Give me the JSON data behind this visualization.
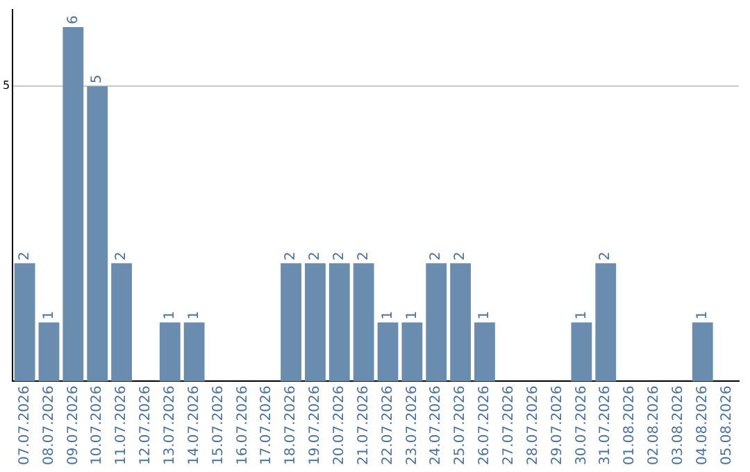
{
  "chart_data": {
    "type": "bar",
    "categories": [
      "07.07.2026",
      "08.07.2026",
      "09.07.2026",
      "10.07.2026",
      "11.07.2026",
      "12.07.2026",
      "13.07.2026",
      "14.07.2026",
      "15.07.2026",
      "16.07.2026",
      "17.07.2026",
      "18.07.2026",
      "19.07.2026",
      "20.07.2026",
      "21.07.2026",
      "22.07.2026",
      "23.07.2026",
      "24.07.2026",
      "25.07.2026",
      "26.07.2026",
      "27.07.2026",
      "28.07.2026",
      "29.07.2026",
      "30.07.2026",
      "31.07.2026",
      "01.08.2026",
      "02.08.2026",
      "03.08.2026",
      "04.08.2026",
      "05.08.2026"
    ],
    "values": [
      2,
      1,
      6,
      5,
      2,
      0,
      1,
      1,
      0,
      0,
      0,
      2,
      2,
      2,
      2,
      1,
      1,
      2,
      2,
      1,
      0,
      0,
      0,
      1,
      2,
      0,
      0,
      0,
      1,
      0
    ],
    "value_labels": [
      "2",
      "1",
      "6",
      "5",
      "2",
      null,
      "1",
      "1",
      null,
      null,
      null,
      "2",
      "2",
      "2",
      "2",
      "1",
      "1",
      "2",
      "2",
      "1",
      null,
      null,
      null,
      "1",
      "2",
      null,
      null,
      null,
      "1",
      null
    ],
    "color": "#6a8caf",
    "ylim": [
      0,
      6.3
    ],
    "yticks": [
      5
    ],
    "grid": "y",
    "legend": false
  }
}
